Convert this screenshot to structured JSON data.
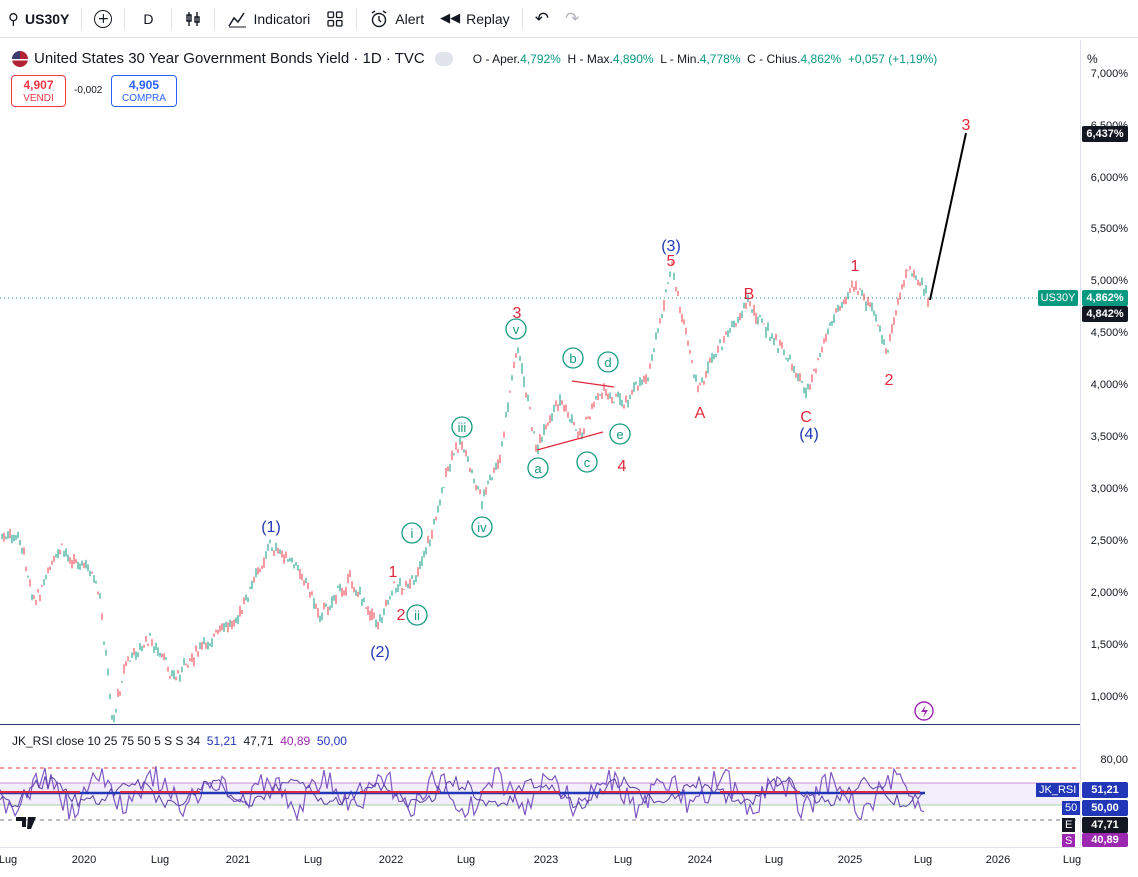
{
  "toolbar": {
    "symbol": "US30Y",
    "interval": "D",
    "indicators_label": "Indicatori",
    "alert_label": "Alert",
    "replay_label": "Replay"
  },
  "legend": {
    "title": "United States 30 Year Government Bonds Yield · 1D · TVC",
    "open_label": "O - Aper.",
    "open": "4,792%",
    "high_label": "H - Max.",
    "high": "4,890%",
    "low_label": "L - Min.",
    "low": "4,778%",
    "close_label": "C - Chius.",
    "close": "4,862%",
    "change": "+0,057 (+1,19%)"
  },
  "trade": {
    "sell_price": "4,907",
    "sell_label": "VENDI",
    "spread": "-0,002",
    "buy_price": "4,905",
    "buy_label": "COMPRA"
  },
  "price_axis": {
    "unit": "%",
    "labels": [
      "7,000%",
      "6,500%",
      "6,000%",
      "5,500%",
      "5,000%",
      "4,500%",
      "4,000%",
      "3,500%",
      "3,000%",
      "2,500%",
      "2,000%",
      "1,500%",
      "1,000%"
    ],
    "target_tag": "6,437%",
    "symbol_tag": "US30Y",
    "last_price_tag": "4,862%",
    "prev_tag": "4,842%"
  },
  "waves": {
    "primary": [
      "(1)",
      "(2)",
      "(3)",
      "(4)"
    ],
    "intermediate": [
      "1",
      "2",
      "3",
      "4",
      "5",
      "1",
      "2",
      "3"
    ],
    "minor": [
      "i",
      "ii",
      "iii",
      "iv",
      "v",
      "a",
      "b",
      "c",
      "d",
      "e"
    ],
    "corrective": [
      "A",
      "B",
      "C"
    ]
  },
  "rsi": {
    "legend_name": "JK_RSI close 10 25 75 50 5 S S 34",
    "v1": "51,21",
    "v2": "47,71",
    "v3": "40,89",
    "v4": "50,00",
    "axis_80": "80,00",
    "tag_name": "JK_RSI",
    "tag_value": "51,21",
    "tag_50_label": "50",
    "tag_50_value": "50,00",
    "tag_e_label": "E",
    "tag_e_value": "47,71",
    "tag_s_label": "S",
    "tag_s_value": "40,89"
  },
  "time_axis": [
    "Lug",
    "2020",
    "Lug",
    "2021",
    "Lug",
    "2022",
    "Lug",
    "2023",
    "Lug",
    "2024",
    "Lug",
    "2025",
    "Lug",
    "2026",
    "Lug"
  ],
  "colors": {
    "up": "#089981",
    "down": "#f23645",
    "wave_blue": "#2137b7",
    "wave_red": "#e0273b",
    "wave_green": "#139a7f",
    "rsi_purple": "#7e57c2"
  }
}
